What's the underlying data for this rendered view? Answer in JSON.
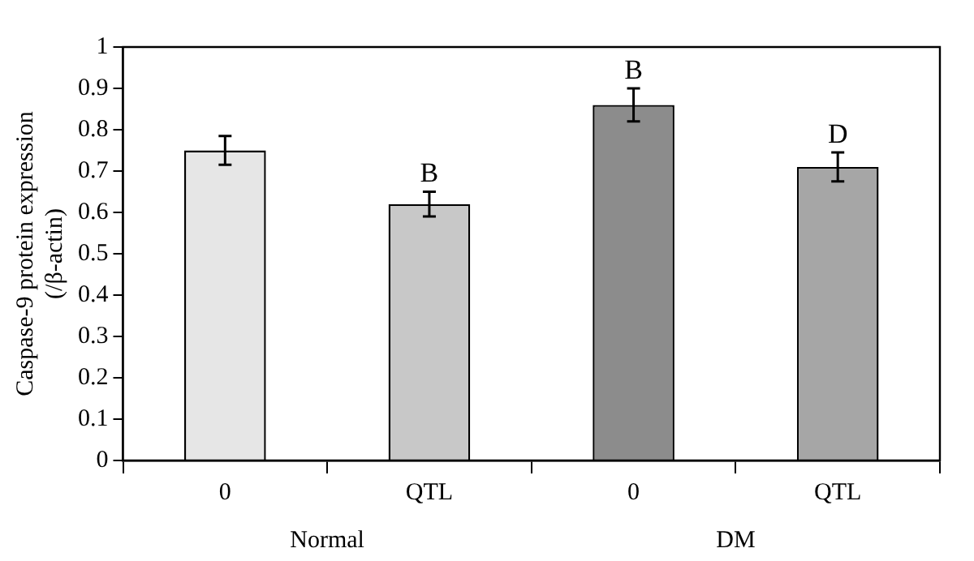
{
  "chart_data": {
    "type": "bar",
    "ylabel": "Caspase-9 protein expression (/β-actin)",
    "categories": [
      "0",
      "QTL",
      "0",
      "QTL"
    ],
    "values": [
      0.75,
      0.62,
      0.86,
      0.71
    ],
    "errors": [
      0.035,
      0.03,
      0.04,
      0.035
    ],
    "value_labels": [
      null,
      "B",
      "B",
      "D"
    ],
    "colors": [
      "#e6e6e6",
      "#c8c8c8",
      "#8c8c8c",
      "#a6a6a6"
    ],
    "annotations": [
      "Normal",
      "DM"
    ],
    "ylim": [
      0,
      1
    ],
    "yticks": [
      0,
      0.1,
      0.2,
      0.3,
      0.4,
      0.5,
      0.6,
      0.7,
      0.8,
      0.9,
      1
    ],
    "grid": false,
    "legend": false
  }
}
